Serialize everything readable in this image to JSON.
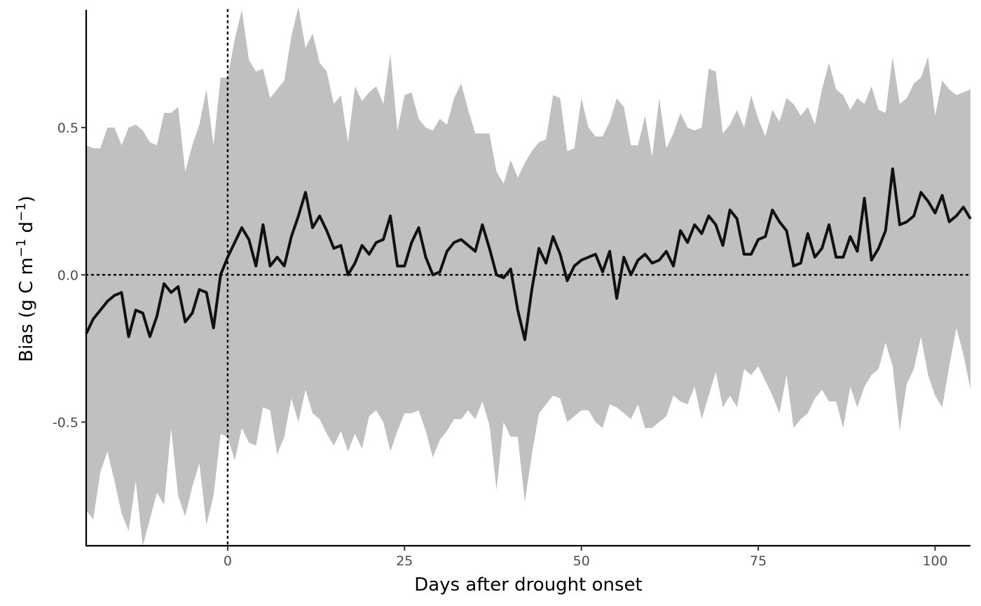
{
  "chart_data": {
    "type": "line",
    "title": "",
    "xlabel": "Days after drought onset",
    "ylabel": {
      "main": "Bias (g C m",
      "sup1": "−1",
      "mid": " d",
      "sup2": "−1",
      "end": ")"
    },
    "xlim": [
      -20,
      105
    ],
    "ylim": [
      -0.92,
      0.9
    ],
    "x_ticks": [
      {
        "value": 0,
        "label": "0"
      },
      {
        "value": 25,
        "label": "25"
      },
      {
        "value": 50,
        "label": "50"
      },
      {
        "value": 75,
        "label": "75"
      },
      {
        "value": 100,
        "label": "100"
      }
    ],
    "y_ticks": [
      {
        "value": 0.5,
        "label": "0.5"
      },
      {
        "value": 0.0,
        "label": "0.0"
      },
      {
        "value": -0.5,
        "label": "-0.5"
      }
    ],
    "reference_lines": {
      "vertical_x": 0,
      "horizontal_y": 0
    },
    "grid": false,
    "colors": {
      "line": "#111111",
      "ribbon": "#c0c0c0",
      "axis": "#000000"
    },
    "x_start": -20,
    "x_step": 1,
    "mean": [
      -0.2,
      -0.15,
      -0.12,
      -0.09,
      -0.07,
      -0.06,
      -0.21,
      -0.12,
      -0.13,
      -0.21,
      -0.14,
      -0.03,
      -0.06,
      -0.04,
      -0.16,
      -0.13,
      -0.05,
      -0.06,
      -0.18,
      0.0,
      0.06,
      0.11,
      0.16,
      0.12,
      0.03,
      0.17,
      0.03,
      0.06,
      0.03,
      0.13,
      0.2,
      0.28,
      0.16,
      0.2,
      0.15,
      0.09,
      0.1,
      0.0,
      0.04,
      0.1,
      0.07,
      0.11,
      0.12,
      0.2,
      0.03,
      0.03,
      0.11,
      0.16,
      0.06,
      0.0,
      0.01,
      0.08,
      0.11,
      0.12,
      0.1,
      0.08,
      0.17,
      0.09,
      0.0,
      -0.01,
      0.02,
      -0.12,
      -0.22,
      -0.05,
      0.09,
      0.04,
      0.13,
      0.07,
      -0.02,
      0.03,
      0.05,
      0.06,
      0.07,
      0.01,
      0.08,
      -0.08,
      0.06,
      0.0,
      0.05,
      0.07,
      0.04,
      0.05,
      0.08,
      0.03,
      0.15,
      0.11,
      0.17,
      0.14,
      0.2,
      0.17,
      0.1,
      0.22,
      0.19,
      0.07,
      0.07,
      0.12,
      0.13,
      0.22,
      0.18,
      0.15,
      0.03,
      0.04,
      0.14,
      0.06,
      0.09,
      0.17,
      0.06,
      0.06,
      0.13,
      0.08,
      0.26,
      0.05,
      0.09,
      0.15,
      0.36,
      0.17,
      0.18,
      0.2,
      0.28,
      0.25,
      0.21,
      0.27,
      0.18,
      0.2,
      0.23,
      0.19
    ],
    "upper": [
      0.44,
      0.43,
      0.43,
      0.5,
      0.5,
      0.44,
      0.5,
      0.51,
      0.49,
      0.45,
      0.44,
      0.55,
      0.55,
      0.57,
      0.35,
      0.44,
      0.51,
      0.63,
      0.44,
      0.67,
      0.67,
      0.8,
      0.9,
      0.73,
      0.69,
      0.7,
      0.6,
      0.63,
      0.66,
      0.81,
      0.91,
      0.77,
      0.82,
      0.72,
      0.69,
      0.58,
      0.61,
      0.45,
      0.64,
      0.59,
      0.62,
      0.64,
      0.58,
      0.75,
      0.49,
      0.61,
      0.62,
      0.53,
      0.5,
      0.49,
      0.53,
      0.51,
      0.6,
      0.65,
      0.56,
      0.48,
      0.48,
      0.48,
      0.35,
      0.31,
      0.39,
      0.33,
      0.38,
      0.42,
      0.45,
      0.46,
      0.61,
      0.6,
      0.42,
      0.43,
      0.6,
      0.5,
      0.47,
      0.47,
      0.52,
      0.6,
      0.57,
      0.44,
      0.44,
      0.54,
      0.4,
      0.6,
      0.43,
      0.48,
      0.55,
      0.5,
      0.49,
      0.5,
      0.7,
      0.69,
      0.48,
      0.51,
      0.56,
      0.5,
      0.61,
      0.53,
      0.47,
      0.56,
      0.52,
      0.6,
      0.58,
      0.54,
      0.57,
      0.51,
      0.63,
      0.72,
      0.63,
      0.61,
      0.56,
      0.6,
      0.58,
      0.64,
      0.56,
      0.55,
      0.74,
      0.58,
      0.6,
      0.65,
      0.67,
      0.74,
      0.54,
      0.66,
      0.63,
      0.61,
      0.62,
      0.63
    ],
    "lower": [
      -0.8,
      -0.83,
      -0.67,
      -0.6,
      -0.7,
      -0.81,
      -0.87,
      -0.7,
      -0.92,
      -0.83,
      -0.74,
      -0.78,
      -0.52,
      -0.75,
      -0.82,
      -0.72,
      -0.64,
      -0.85,
      -0.75,
      -0.54,
      -0.55,
      -0.63,
      -0.52,
      -0.57,
      -0.58,
      -0.45,
      -0.46,
      -0.61,
      -0.55,
      -0.42,
      -0.5,
      -0.39,
      -0.47,
      -0.49,
      -0.54,
      -0.58,
      -0.53,
      -0.6,
      -0.54,
      -0.59,
      -0.48,
      -0.46,
      -0.5,
      -0.6,
      -0.53,
      -0.47,
      -0.47,
      -0.46,
      -0.53,
      -0.62,
      -0.56,
      -0.53,
      -0.49,
      -0.49,
      -0.46,
      -0.49,
      -0.43,
      -0.51,
      -0.73,
      -0.5,
      -0.55,
      -0.55,
      -0.77,
      -0.61,
      -0.47,
      -0.44,
      -0.41,
      -0.42,
      -0.5,
      -0.48,
      -0.46,
      -0.46,
      -0.5,
      -0.52,
      -0.44,
      -0.45,
      -0.47,
      -0.49,
      -0.44,
      -0.52,
      -0.52,
      -0.5,
      -0.48,
      -0.41,
      -0.43,
      -0.44,
      -0.38,
      -0.49,
      -0.41,
      -0.33,
      -0.45,
      -0.41,
      -0.45,
      -0.32,
      -0.34,
      -0.31,
      -0.36,
      -0.41,
      -0.47,
      -0.34,
      -0.52,
      -0.49,
      -0.47,
      -0.42,
      -0.39,
      -0.43,
      -0.43,
      -0.52,
      -0.38,
      -0.45,
      -0.38,
      -0.34,
      -0.32,
      -0.23,
      -0.31,
      -0.53,
      -0.37,
      -0.32,
      -0.21,
      -0.34,
      -0.41,
      -0.45,
      -0.31,
      -0.18,
      -0.27,
      -0.39
    ]
  }
}
